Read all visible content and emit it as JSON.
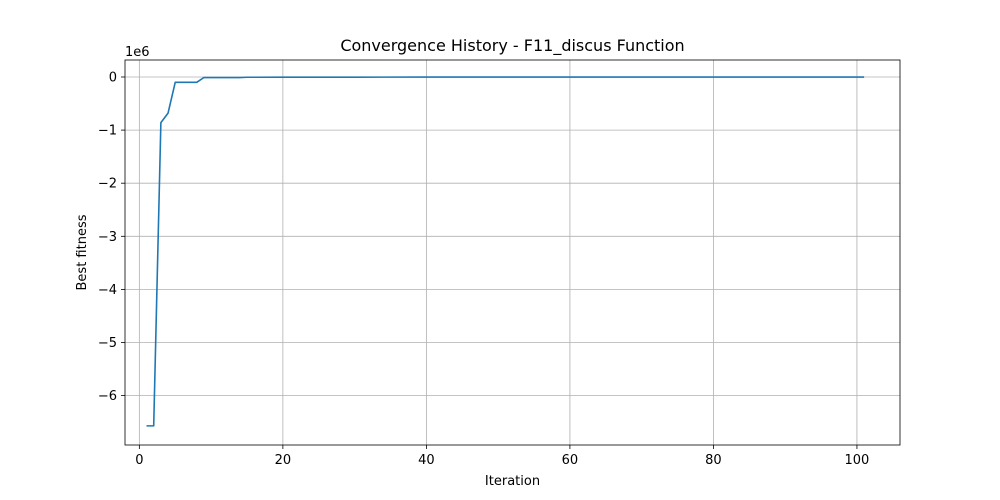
{
  "chart_data": {
    "type": "line",
    "title": "Convergence History - F11_discus Function",
    "xlabel": "Iteration",
    "ylabel": "Best fitness",
    "y_offset_label": "1e6",
    "xlim": [
      -2,
      106
    ],
    "ylim": [
      -6.93,
      0.32
    ],
    "x_ticks": [
      0,
      20,
      40,
      60,
      80,
      100
    ],
    "x_tick_labels": [
      "0",
      "20",
      "40",
      "60",
      "80",
      "100"
    ],
    "y_ticks": [
      0,
      -1,
      -2,
      -3,
      -4,
      -5,
      -6
    ],
    "y_tick_labels": [
      "0",
      "−1",
      "−2",
      "−3",
      "−4",
      "−5",
      "−6"
    ],
    "grid": true,
    "line_color": "#1f77b4",
    "series": [
      {
        "x": [
          1,
          2,
          3,
          4,
          5,
          6,
          7,
          8,
          9,
          10,
          12,
          14,
          15,
          20,
          30,
          40,
          50,
          60,
          70,
          80,
          90,
          101
        ],
        "y": [
          -6.57,
          -6.57,
          -0.86,
          -0.68,
          -0.1,
          -0.1,
          -0.1,
          -0.1,
          -0.01,
          -0.01,
          -0.01,
          -0.01,
          -0.005,
          -0.004,
          -0.003,
          -0.002,
          -0.002,
          -0.002,
          -0.002,
          -0.002,
          -0.002,
          -0.002
        ]
      }
    ]
  }
}
